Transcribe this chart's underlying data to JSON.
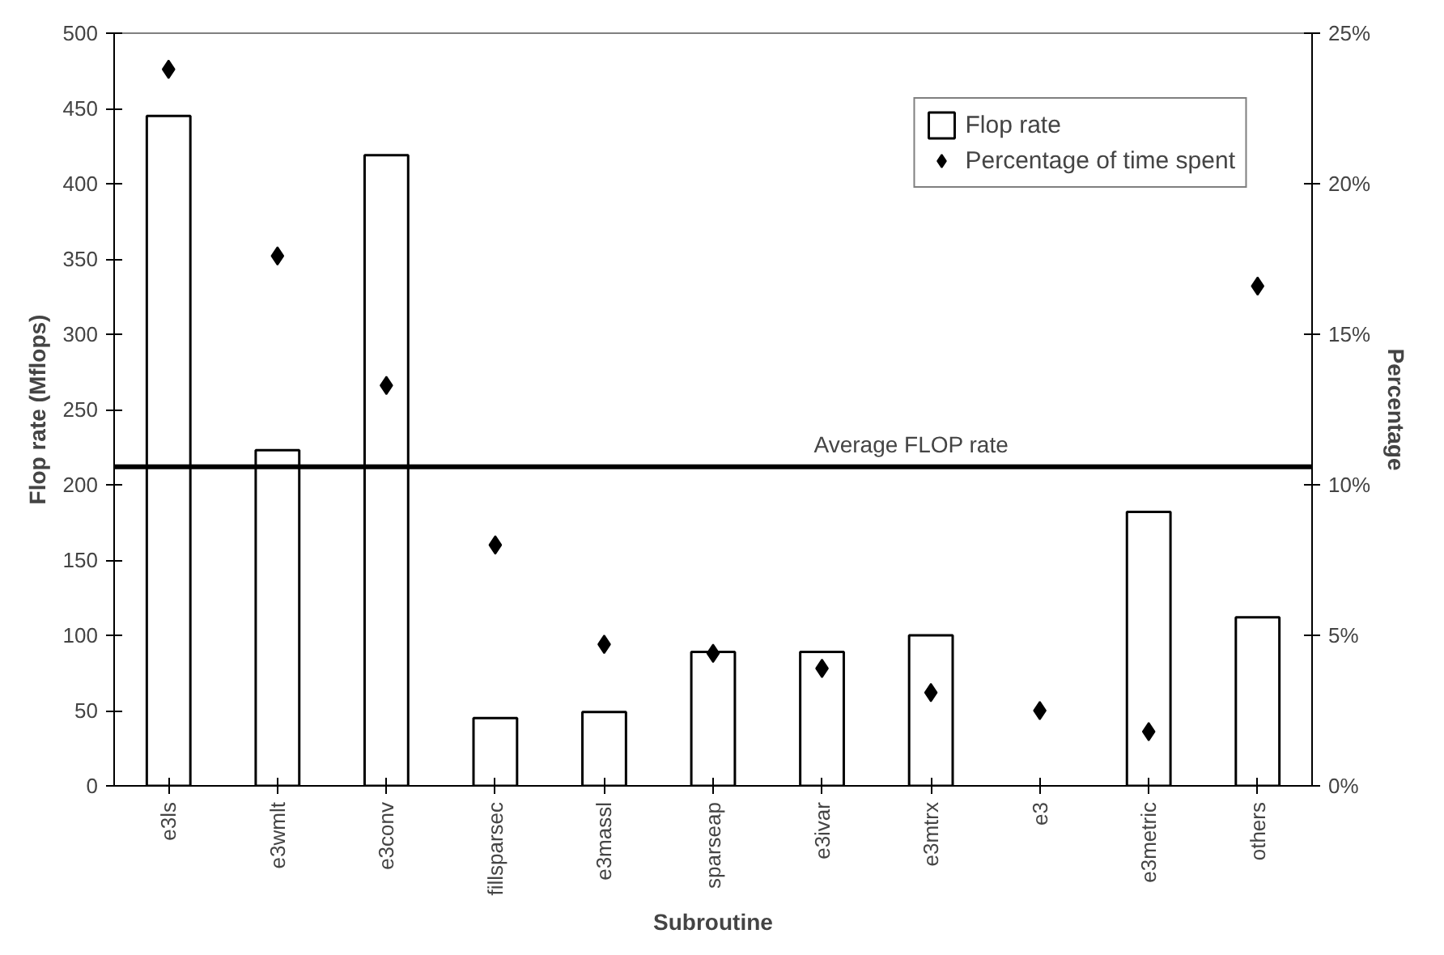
{
  "chart_data": {
    "type": "bar",
    "xlabel": "Subroutine",
    "ylabel": "Flop rate (Mflops)",
    "y2label": "Percentage",
    "categories": [
      "e3ls",
      "e3wmlt",
      "e3conv",
      "fillsparsec",
      "e3massl",
      "sparseap",
      "e3ivar",
      "e3mtrx",
      "e3",
      "e3metric",
      "others"
    ],
    "series": [
      {
        "name": "Flop rate",
        "color": "#ffffff",
        "values": [
          445,
          223,
          419,
          45,
          49,
          89,
          89,
          100,
          null,
          182,
          112
        ]
      },
      {
        "name": "Percentage of time spent",
        "type": "scatter",
        "axis": "y2",
        "color": "#000000",
        "marker": "diamond",
        "values": [
          23.8,
          17.6,
          13.3,
          8.0,
          4.7,
          4.4,
          3.9,
          3.1,
          2.5,
          1.8,
          16.6
        ]
      }
    ],
    "ylim": [
      0,
      500
    ],
    "yticks": [
      0,
      50,
      100,
      150,
      200,
      250,
      300,
      350,
      400,
      450,
      500
    ],
    "y2lim": [
      0,
      25
    ],
    "y2ticks": [
      {
        "value": 0,
        "label": "0%"
      },
      {
        "value": 5,
        "label": "5%"
      },
      {
        "value": 10,
        "label": "10%"
      },
      {
        "value": 15,
        "label": "15%"
      },
      {
        "value": 20,
        "label": "20%"
      },
      {
        "value": 25,
        "label": "25%"
      }
    ],
    "ref_lines": [
      {
        "axis": "y",
        "value": 212,
        "label": "Average FLOP rate",
        "color": "#000000",
        "line_style": "solid"
      }
    ],
    "grid": false,
    "legend": "top right"
  }
}
